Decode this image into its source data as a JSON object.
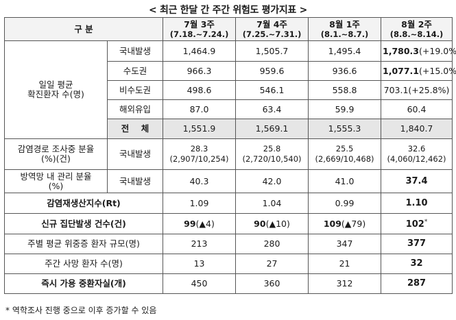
{
  "title": "< 최근 한달 간 주간 위험도 평가지표 >",
  "header": {
    "label": "구 분",
    "weeks": [
      {
        "name": "7월 3주",
        "period": "(7.18.~7.24.)"
      },
      {
        "name": "7월 4주",
        "period": "(7.25.~7.31.)"
      },
      {
        "name": "8월 1주",
        "period": "(8.1.~8.7.)"
      },
      {
        "name": "8월 2주",
        "period": "(8.8.~8.14.)"
      }
    ]
  },
  "rows": {
    "daily_label_1": "일일 평균",
    "daily_label_2": "확진환자 수(명)",
    "domestic": {
      "label": "국내발생",
      "values": [
        "1,464.9",
        "1,505.7",
        "1,495.4"
      ],
      "last_bold": "1,780.3",
      "last_note": "(+19.0%)"
    },
    "capital": {
      "label": "수도권",
      "values": [
        "966.3",
        "959.6",
        "936.6"
      ],
      "last_bold": "1,077.1",
      "last_note": "(+15.0%)"
    },
    "non_capital": {
      "label": "비수도권",
      "values": [
        "498.6",
        "546.1",
        "558.8"
      ],
      "last": "703.1(+25.8%)"
    },
    "imported": {
      "label": "해외유입",
      "values": [
        "87.0",
        "63.4",
        "59.9",
        "60.4"
      ]
    },
    "total": {
      "label": "전    체",
      "values": [
        "1,551.9",
        "1,569.1",
        "1,555.3",
        "1,840.7"
      ]
    },
    "investigation": {
      "label_1": "감염경로 조사중 분율",
      "label_2": "(%)(건)",
      "sub_label": "국내발생",
      "values": [
        "28.3",
        "25.8",
        "25.5",
        "32.6"
      ],
      "details": [
        "(2,907/10,254)",
        "(2,720/10,540)",
        "(2,669/10,468)",
        "(4,060/12,462)"
      ]
    },
    "quarantine": {
      "label_1": "방역망 내 관리 분율",
      "label_2": "(%)",
      "sub_label": "국내발생",
      "values": [
        "40.3",
        "42.0",
        "41.0",
        "37.4"
      ]
    },
    "rt": {
      "label": "감염재생산지수(Rt)",
      "values": [
        "1.09",
        "1.04",
        "0.99",
        "1.10"
      ]
    },
    "clusters": {
      "label": "신규 집단발생 건수(건)",
      "values": [
        "99",
        "90",
        "109",
        "102"
      ],
      "changes": [
        "(▲4)",
        "(▲10)",
        "(▲79)",
        ""
      ],
      "star": "*"
    },
    "severe": {
      "label": "주별 평균 위중증 환자 규모(명)",
      "values": [
        "213",
        "280",
        "347",
        "377"
      ]
    },
    "deaths": {
      "label": "주간 사망 환자 수(명)",
      "values": [
        "13",
        "27",
        "21",
        "32"
      ]
    },
    "beds": {
      "label": "즉시 가용 중환자실(개)",
      "values": [
        "450",
        "360",
        "312",
        "287"
      ]
    }
  },
  "footnote": "* 역학조사 진행 중으로 이후 증가할 수 있음"
}
